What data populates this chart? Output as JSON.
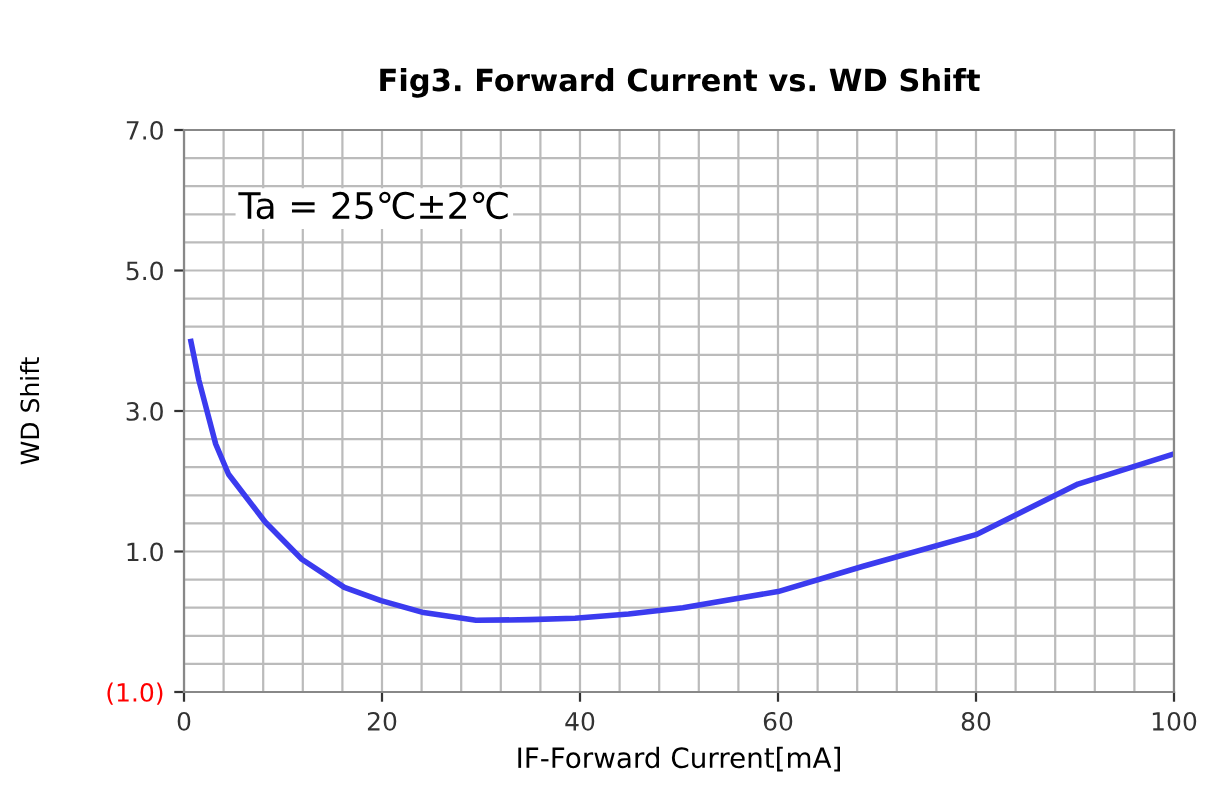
{
  "chart_data": {
    "type": "line",
    "title": "Fig3. Forward Current vs. WD Shift",
    "xlabel": "IF-Forward Current[mA]",
    "ylabel": "WD Shift",
    "annotations": [
      "Ta = 25℃±2℃"
    ],
    "x": [
      0.7,
      1.5,
      3.2,
      4.5,
      8.2,
      11.9,
      16.2,
      19.9,
      24.2,
      29.5,
      34.9,
      39.5,
      44.9,
      50.4,
      60,
      68.6,
      80,
      90.3,
      100
    ],
    "series": [
      {
        "color": "#3b3bef",
        "values": [
          3.99,
          3.44,
          2.53,
          2.1,
          1.42,
          0.89,
          0.49,
          0.3,
          0.13,
          0.02,
          0.03,
          0.05,
          0.11,
          0.2,
          0.43,
          0.79,
          1.24,
          1.96,
          2.39
        ]
      }
    ],
    "xlim": [
      0,
      100
    ],
    "ylim": [
      -1,
      7
    ],
    "xticks": [
      0,
      {
        "value": 4,
        "label": null
      },
      {
        "value": 8,
        "label": null
      },
      {
        "value": 12,
        "label": null
      },
      {
        "value": 16,
        "label": null
      },
      20,
      {
        "value": 24,
        "label": null
      },
      {
        "value": 28,
        "label": null
      },
      {
        "value": 32,
        "label": null
      },
      {
        "value": 36,
        "label": null
      },
      40,
      {
        "value": 44,
        "label": null
      },
      {
        "value": 48,
        "label": null
      },
      {
        "value": 52,
        "label": null
      },
      {
        "value": 56,
        "label": null
      },
      60,
      {
        "value": 64,
        "label": null
      },
      {
        "value": 68,
        "label": null
      },
      {
        "value": 72,
        "label": null
      },
      {
        "value": 76,
        "label": null
      },
      80,
      {
        "value": 84,
        "label": null
      },
      {
        "value": 88,
        "label": null
      },
      {
        "value": 92,
        "label": null
      },
      {
        "value": 96,
        "label": null
      },
      100
    ],
    "yticks": [
      {
        "value": -1,
        "label": "(1.0)"
      },
      {
        "value": -0.6,
        "label": null
      },
      {
        "value": -0.2,
        "label": null
      },
      {
        "value": 0.2,
        "label": null
      },
      {
        "value": 0.6,
        "label": null
      },
      {
        "value": 1,
        "label": "1.0"
      },
      {
        "value": 1.4,
        "label": null
      },
      {
        "value": 1.8,
        "label": null
      },
      {
        "value": 2.2,
        "label": null
      },
      {
        "value": 2.6,
        "label": null
      },
      {
        "value": 3,
        "label": "3.0"
      },
      {
        "value": 3.4,
        "label": null
      },
      {
        "value": 3.8,
        "label": null
      },
      {
        "value": 4.2,
        "label": null
      },
      {
        "value": 4.6,
        "label": null
      },
      {
        "value": 5,
        "label": "5.0"
      },
      {
        "value": 5.4,
        "label": null
      },
      {
        "value": 5.8,
        "label": null
      },
      {
        "value": 6.2,
        "label": null
      },
      {
        "value": 6.6,
        "label": null
      },
      {
        "value": 7,
        "label": "7.0"
      }
    ],
    "grid": true,
    "line_style": "solid",
    "marker": "none"
  }
}
